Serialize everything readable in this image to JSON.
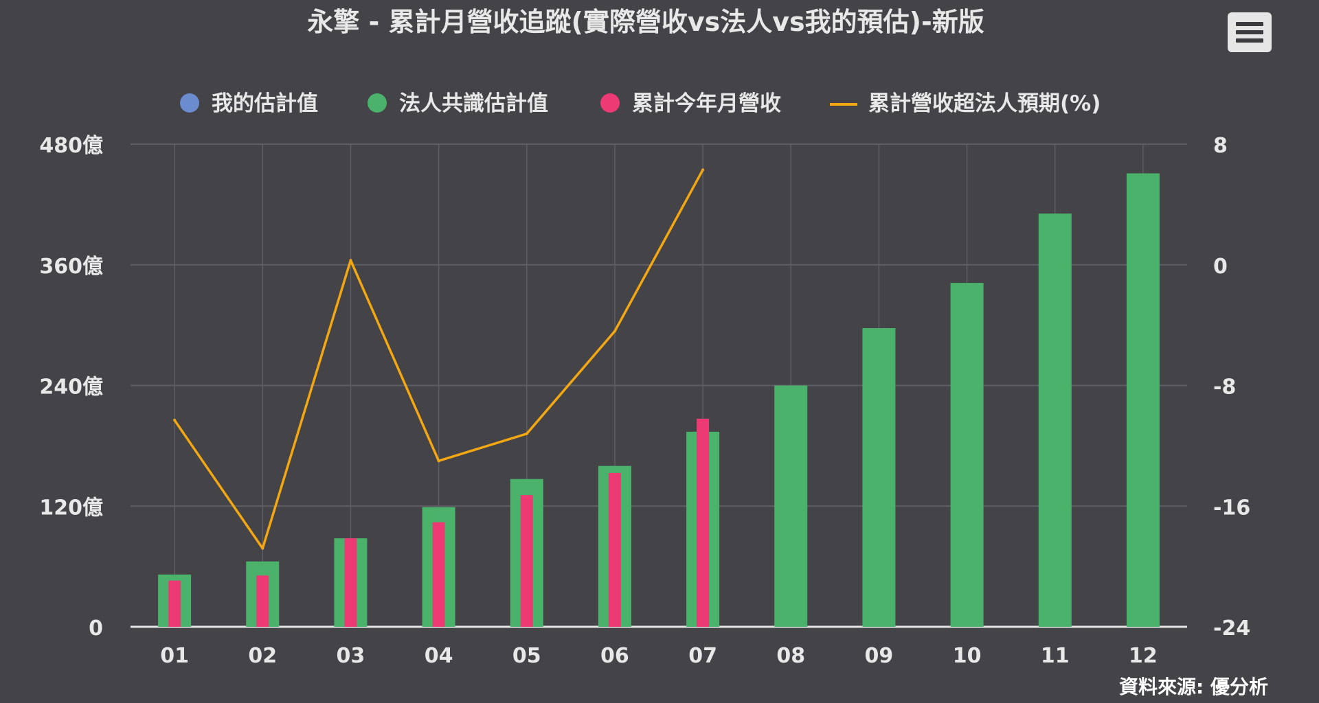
{
  "title": "永擎 - 累計月營收追蹤(實際營收vs法人vs我的預估)-新版",
  "credits": "資料來源: 優分析",
  "menu_icon": "hamburger-menu-icon",
  "colors": {
    "background": "#434348",
    "grid": "#5e5e64",
    "text": "#e8e8e8",
    "my_estimate": "#6b8ccf",
    "consensus": "#4ab26a",
    "actual": "#ee3a74",
    "line": "#f3a712"
  },
  "chart_data": {
    "type": "bar",
    "categories": [
      "01",
      "02",
      "03",
      "04",
      "05",
      "06",
      "07",
      "08",
      "09",
      "10",
      "11",
      "12"
    ],
    "legend_position": "top-center",
    "grid": true,
    "y_axis_left": {
      "min": 0,
      "max": 480,
      "ticks": [
        0,
        120,
        240,
        360,
        480
      ],
      "tick_labels": [
        "0",
        "120億",
        "240億",
        "360億",
        "480億"
      ]
    },
    "y_axis_right": {
      "min": -24,
      "max": 8,
      "ticks": [
        -24,
        -16,
        -8,
        0,
        8
      ],
      "tick_labels": [
        "-24",
        "-16",
        "-8",
        "0",
        "8"
      ]
    },
    "series": [
      {
        "name": "我的估計值",
        "type": "bar",
        "axis": "left",
        "values": [
          null,
          null,
          null,
          null,
          null,
          null,
          null,
          null,
          null,
          null,
          null,
          null
        ]
      },
      {
        "name": "法人共識估計值",
        "type": "bar",
        "axis": "left",
        "values": [
          52,
          65,
          88,
          119,
          147,
          160,
          194,
          240,
          297,
          342,
          411,
          451
        ]
      },
      {
        "name": "累計今年月營收",
        "type": "bar",
        "axis": "left",
        "values": [
          46,
          51,
          88,
          104,
          131,
          153,
          207,
          null,
          null,
          null,
          null,
          null
        ]
      },
      {
        "name": "累計營收超法人預期(%)",
        "type": "line",
        "axis": "right",
        "values": [
          -10.3,
          -18.8,
          0.3,
          -13.0,
          -11.2,
          -4.4,
          6.3,
          null,
          null,
          null,
          null,
          null
        ]
      }
    ]
  }
}
